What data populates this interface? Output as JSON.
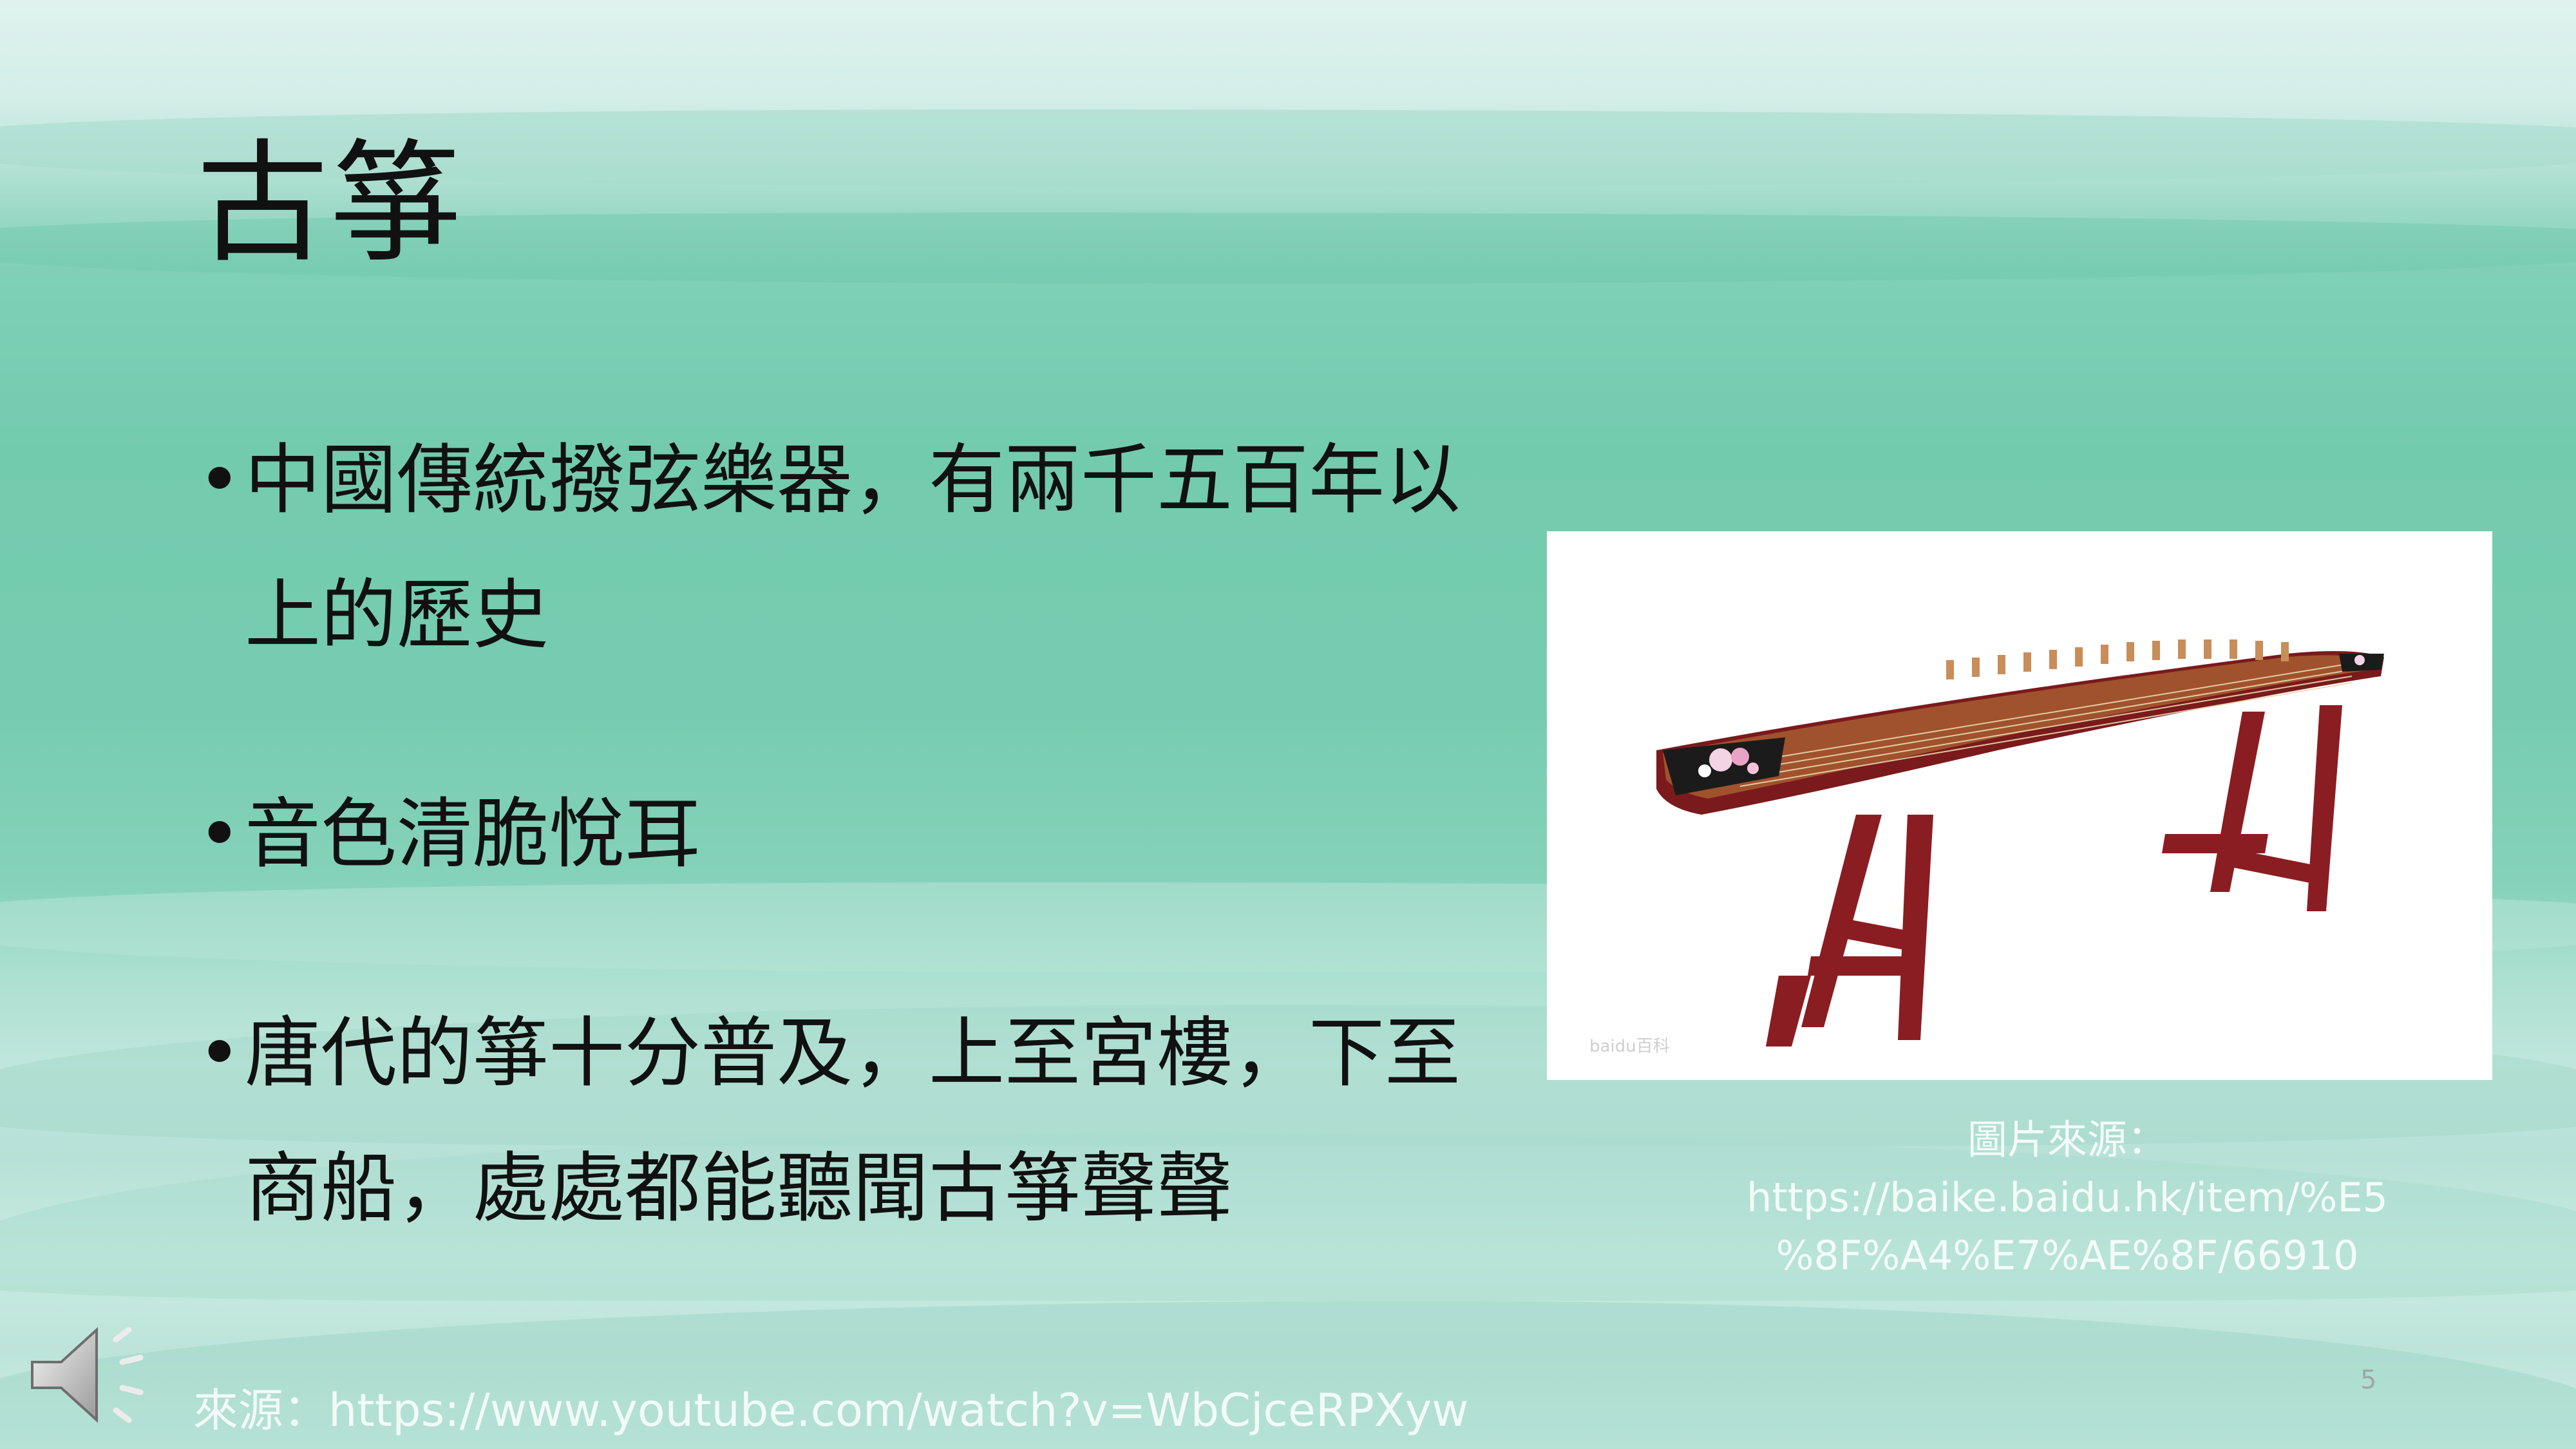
{
  "slide": {
    "title": "古箏",
    "bullets": [
      {
        "line1": "中國傳統撥弦樂器，有兩千五百年以",
        "line2": "上的歷史"
      },
      {
        "line1": "音色清脆悅耳",
        "line2": ""
      },
      {
        "line1": "唐代的箏十分普及，上至宮樓，下至",
        "line2": "商船，處處都能聽聞古箏聲聲"
      }
    ],
    "image": {
      "watermark": "baidu百科"
    },
    "image_credit": {
      "label": "圖片來源：",
      "url_line1": "https://baike.baidu.hk/item/%E5",
      "url_line2": "%8F%A4%E7%AE%8F/66910"
    },
    "source": "來源：https://www.youtube.com/watch?v=WbCjceRPXyw",
    "page_number": "5",
    "audio_icon": "speaker-icon"
  }
}
